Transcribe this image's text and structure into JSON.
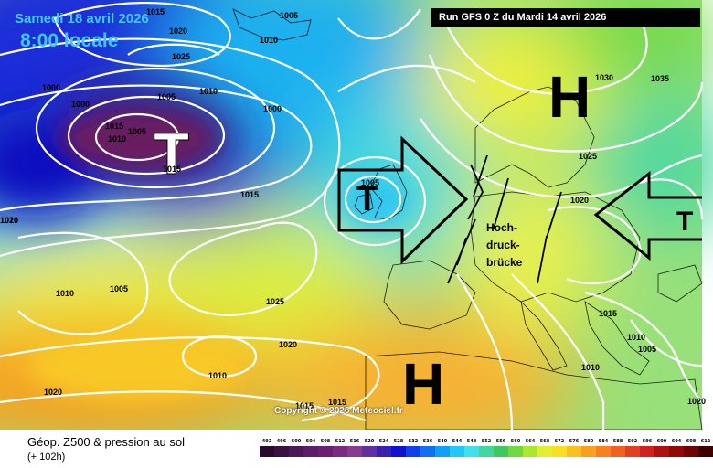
{
  "header": {
    "date": "Samedi 18 avril 2026",
    "time": "8:00 locale",
    "run": "Run GFS 0 Z du Mardi 14 avril 2026"
  },
  "copyright": "Copyright © 2026 Meteociel.fr",
  "footer": {
    "title": "Géop. Z500 & pression au sol",
    "subtitle": "(+ 102h)"
  },
  "annotation": {
    "line1": "Hoch-",
    "line2": "druck-",
    "line3": "brücke"
  },
  "pressure_centers": [
    {
      "letter": "T"
    },
    {
      "letter": "T"
    },
    {
      "letter": "T"
    },
    {
      "letter": "H"
    },
    {
      "letter": "H"
    }
  ],
  "isobar_labels": [
    "1015",
    "1020",
    "1025",
    "1005",
    "1010",
    "1000",
    "1000",
    "1005",
    "1010",
    "1015",
    "1010",
    "1005",
    "1015",
    "1000",
    "1010",
    "1005",
    "1015",
    "1020",
    "1005",
    "1010",
    "1025",
    "1020",
    "1010",
    "1020",
    "1015",
    "1015",
    "1030",
    "1035",
    "1025",
    "1020",
    "1015",
    "1010",
    "1005",
    "1010",
    "1020"
  ],
  "scale": [
    {
      "label": "492",
      "color": "#2a0a2a"
    },
    {
      "label": "496",
      "color": "#3a1040"
    },
    {
      "label": "500",
      "color": "#4a1a55"
    },
    {
      "label": "504",
      "color": "#5a1f66"
    },
    {
      "label": "508",
      "color": "#6a2070"
    },
    {
      "label": "512",
      "color": "#7a2a80"
    },
    {
      "label": "516",
      "color": "#8a3a8a"
    },
    {
      "label": "520",
      "color": "#6030a0"
    },
    {
      "label": "524",
      "color": "#3a20b0"
    },
    {
      "label": "528",
      "color": "#1010d0"
    },
    {
      "label": "532",
      "color": "#1040e8"
    },
    {
      "label": "536",
      "color": "#1070f0"
    },
    {
      "label": "540",
      "color": "#10a0f8"
    },
    {
      "label": "544",
      "color": "#20c8f8"
    },
    {
      "label": "548",
      "color": "#40e0e8"
    },
    {
      "label": "552",
      "color": "#40d8a0"
    },
    {
      "label": "556",
      "color": "#40c860"
    },
    {
      "label": "560",
      "color": "#70d840"
    },
    {
      "label": "564",
      "color": "#a8e830"
    },
    {
      "label": "568",
      "color": "#e0f030"
    },
    {
      "label": "572",
      "color": "#f8e020"
    },
    {
      "label": "576",
      "color": "#f8c020"
    },
    {
      "label": "580",
      "color": "#f8a020"
    },
    {
      "label": "584",
      "color": "#f88020"
    },
    {
      "label": "588",
      "color": "#f06020"
    },
    {
      "label": "592",
      "color": "#e04020"
    },
    {
      "label": "596",
      "color": "#d02020"
    },
    {
      "label": "600",
      "color": "#b01010"
    },
    {
      "label": "604",
      "color": "#900808"
    },
    {
      "label": "608",
      "color": "#700404"
    },
    {
      "label": "612",
      "color": "#400000"
    }
  ]
}
